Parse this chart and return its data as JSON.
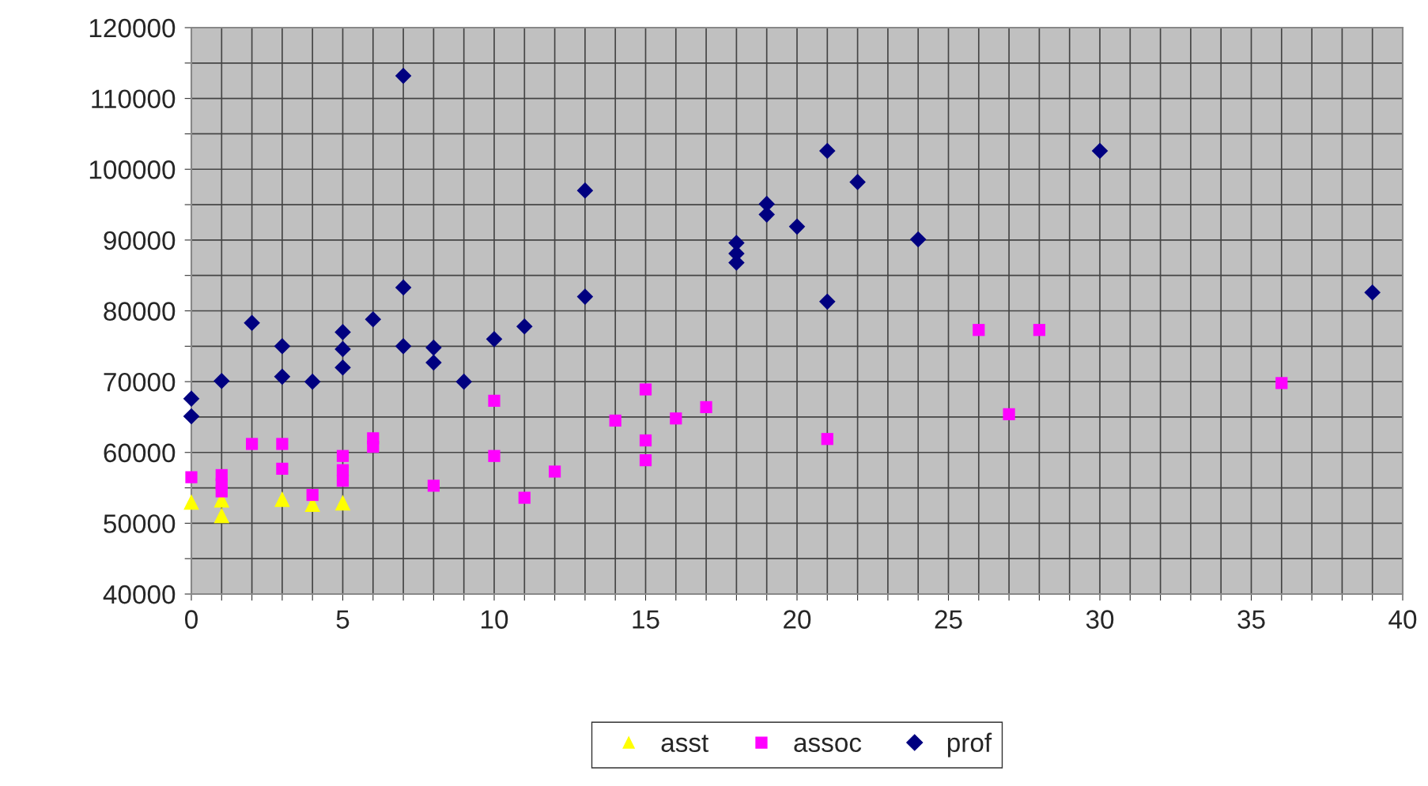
{
  "chart_data": {
    "type": "scatter",
    "series": [
      {
        "name": "asst",
        "color": "#ffff00",
        "marker": "triangle",
        "x": [
          0,
          1,
          1,
          3,
          4,
          5
        ],
        "values": [
          53000,
          53300,
          51100,
          53400,
          52700,
          52900
        ]
      },
      {
        "name": "assoc",
        "color": "#ff00ff",
        "marker": "square",
        "x": [
          0,
          1,
          1,
          1,
          2,
          3,
          3,
          4,
          5,
          5,
          5,
          6,
          6,
          8,
          10,
          10,
          11,
          12,
          14,
          15,
          15,
          15,
          16,
          17,
          21,
          26,
          27,
          28,
          36
        ],
        "values": [
          56500,
          56800,
          55500,
          54500,
          61200,
          61200,
          57700,
          54000,
          59500,
          57500,
          56000,
          62000,
          60800,
          55300,
          67300,
          59500,
          53600,
          57300,
          64500,
          68900,
          61700,
          58900,
          64800,
          66400,
          61900,
          77300,
          65400,
          77300,
          69800
        ]
      },
      {
        "name": "prof",
        "color": "#000080",
        "marker": "diamond",
        "x": [
          0,
          0,
          1,
          2,
          3,
          3,
          4,
          5,
          5,
          5,
          6,
          7,
          7,
          7,
          8,
          8,
          9,
          10,
          11,
          13,
          13,
          18,
          18,
          18,
          19,
          19,
          20,
          21,
          21,
          22,
          24,
          30,
          39
        ],
        "values": [
          67600,
          65100,
          70100,
          78300,
          75000,
          70700,
          70000,
          77000,
          74600,
          72000,
          78800,
          113200,
          83300,
          75000,
          74800,
          72700,
          70000,
          76000,
          77800,
          97000,
          82000,
          89600,
          88100,
          86800,
          95100,
          93600,
          91900,
          102600,
          81300,
          98200,
          90100,
          102600,
          82600
        ]
      }
    ],
    "xlim": [
      0,
      40
    ],
    "xticks": [
      0,
      {
        "value": 1,
        "label": null
      },
      {
        "value": 2,
        "label": null
      },
      {
        "value": 3,
        "label": null
      },
      {
        "value": 4,
        "label": null
      },
      5,
      {
        "value": 6,
        "label": null
      },
      {
        "value": 7,
        "label": null
      },
      {
        "value": 8,
        "label": null
      },
      {
        "value": 9,
        "label": null
      },
      10,
      {
        "value": 11,
        "label": null
      },
      {
        "value": 12,
        "label": null
      },
      {
        "value": 13,
        "label": null
      },
      {
        "value": 14,
        "label": null
      },
      15,
      {
        "value": 16,
        "label": null
      },
      {
        "value": 17,
        "label": null
      },
      {
        "value": 18,
        "label": null
      },
      {
        "value": 19,
        "label": null
      },
      20,
      {
        "value": 21,
        "label": null
      },
      {
        "value": 22,
        "label": null
      },
      {
        "value": 23,
        "label": null
      },
      {
        "value": 24,
        "label": null
      },
      25,
      {
        "value": 26,
        "label": null
      },
      {
        "value": 27,
        "label": null
      },
      {
        "value": 28,
        "label": null
      },
      {
        "value": 29,
        "label": null
      },
      30,
      {
        "value": 31,
        "label": null
      },
      {
        "value": 32,
        "label": null
      },
      {
        "value": 33,
        "label": null
      },
      {
        "value": 34,
        "label": null
      },
      35,
      {
        "value": 36,
        "label": null
      },
      {
        "value": 37,
        "label": null
      },
      {
        "value": 38,
        "label": null
      },
      {
        "value": 39,
        "label": null
      },
      40
    ],
    "ylim": [
      40000,
      120000
    ],
    "yticks": [
      40000,
      {
        "value": 45000,
        "label": null
      },
      50000,
      {
        "value": 55000,
        "label": null
      },
      60000,
      {
        "value": 65000,
        "label": null
      },
      70000,
      {
        "value": 75000,
        "label": null
      },
      80000,
      {
        "value": 85000,
        "label": null
      },
      90000,
      {
        "value": 95000,
        "label": null
      },
      100000,
      {
        "value": 105000,
        "label": null
      },
      110000,
      {
        "value": 115000,
        "label": null
      },
      120000
    ],
    "grid": true,
    "legend": "bottom"
  }
}
